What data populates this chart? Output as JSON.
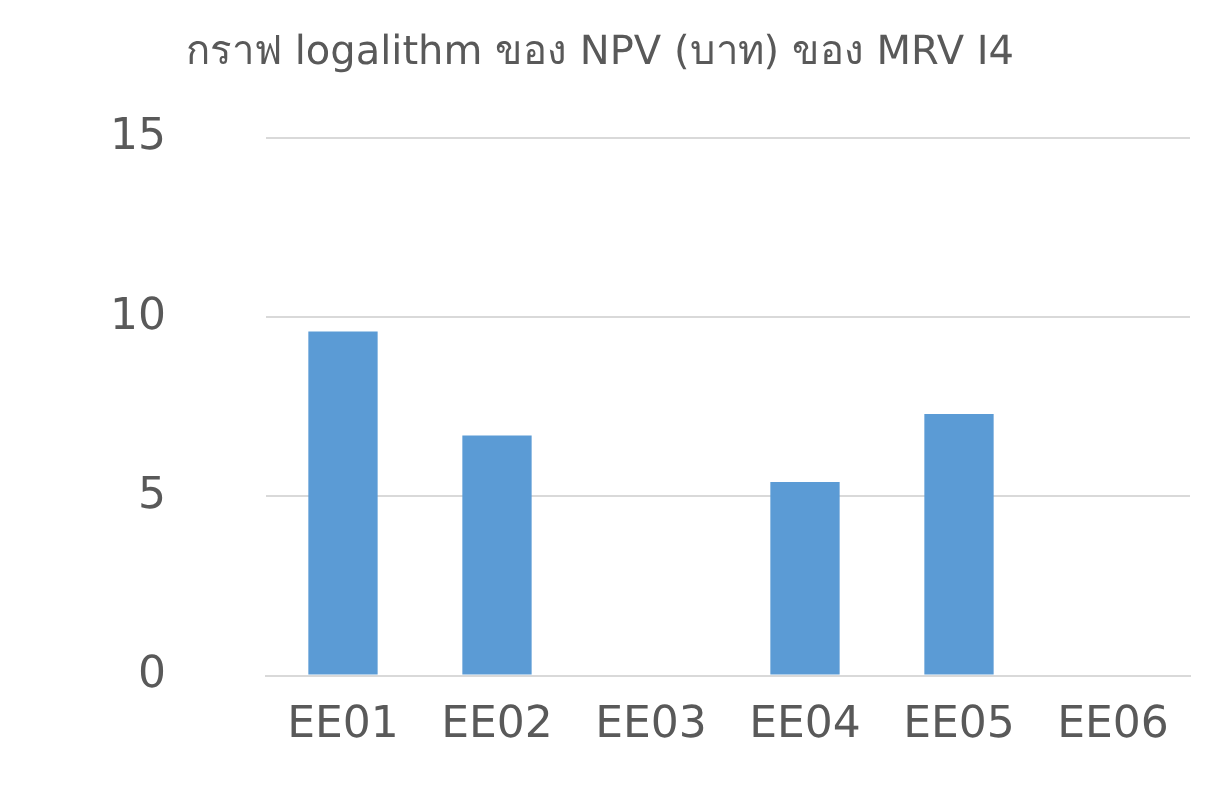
{
  "chart_data": {
    "type": "bar",
    "title": "กราฟ logalithm ของ NPV (บาท) ของ MRV I4",
    "categories": [
      "EE01",
      "EE02",
      "EE03",
      "EE04",
      "EE05",
      "EE06"
    ],
    "values": [
      9.6,
      6.7,
      null,
      5.4,
      7.3,
      null
    ],
    "color": "#5b9bd5",
    "ylim": [
      0,
      15
    ],
    "yticks": [
      0,
      5,
      10,
      15
    ],
    "grid": "y"
  }
}
